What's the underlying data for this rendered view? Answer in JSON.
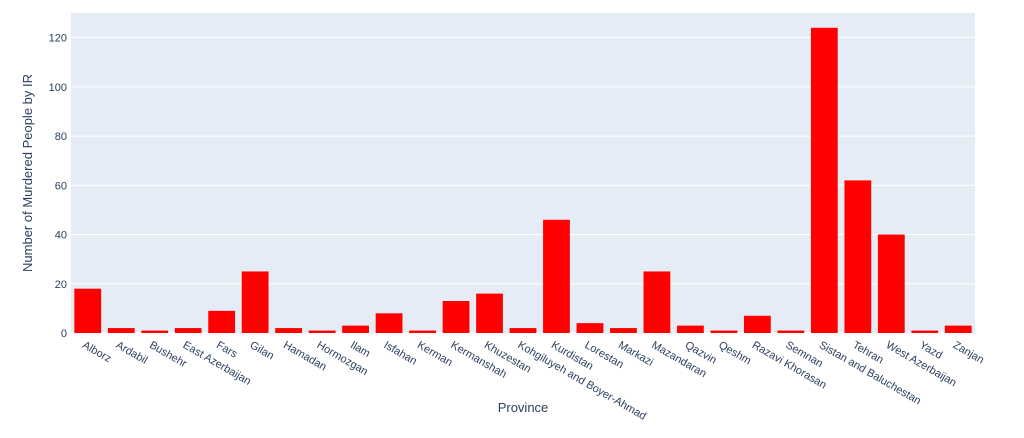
{
  "chart_data": {
    "type": "bar",
    "title": "",
    "xlabel": "Province",
    "ylabel": "Number of Murdered People by IR",
    "ylim": [
      0,
      130
    ],
    "yticks": [
      0,
      20,
      40,
      60,
      80,
      100,
      120
    ],
    "grid": true,
    "legend": "none",
    "bar_color": "#ff0000",
    "plot_bg": "#e5ecf6",
    "categories": [
      "Alborz",
      "Ardabil",
      "Bushehr",
      "East Azerbaijan",
      "Fars",
      "Gilan",
      "Hamadan",
      "Hormozgan",
      "Ilam",
      "Isfahan",
      "Kerman",
      "Kermanshah",
      "Khuzestan",
      "Kohgiluyeh and Boyer-Ahmad",
      "Kurdistan",
      "Lorestan",
      "Markazi",
      "Mazandaran",
      "Qazvin",
      "Qeshm",
      "Razavi Khorasan",
      "Semnan",
      "Sistan and Baluchestan",
      "Tehran",
      "West Azerbaijan",
      "Yazd",
      "Zanjan"
    ],
    "values": [
      18,
      2,
      1,
      2,
      9,
      25,
      2,
      1,
      3,
      8,
      1,
      13,
      16,
      2,
      46,
      4,
      2,
      25,
      3,
      1,
      7,
      1,
      124,
      62,
      40,
      1,
      3
    ]
  }
}
